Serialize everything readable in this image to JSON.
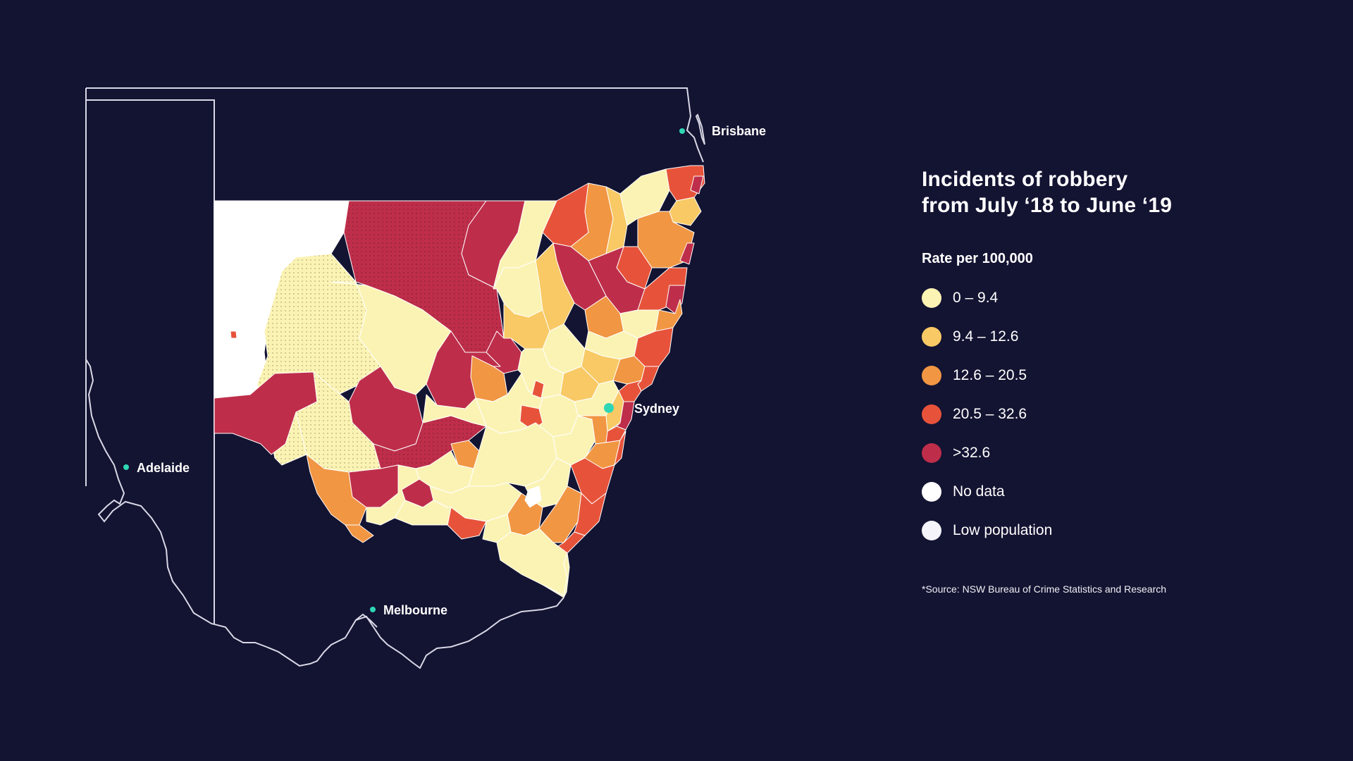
{
  "legend": {
    "title_line1": "Incidents of robbery",
    "title_line2": "from July ‘18 to June ‘19",
    "subtitle": "Rate per 100,000",
    "items": [
      {
        "label": "0 – 9.4",
        "color": "#fbf3b4"
      },
      {
        "label": "9.4 – 12.6",
        "color": "#f8c964"
      },
      {
        "label": "12.6 – 20.5",
        "color": "#f19643"
      },
      {
        "label": "20.5 – 32.6",
        "color": "#e7533a"
      },
      {
        "label": ">32.6",
        "color": "#be2e4a"
      },
      {
        "label": "No data",
        "color": "#ffffff"
      },
      {
        "label": "Low population",
        "color": "#f4f4fa"
      }
    ],
    "source": "*Source: NSW Bureau of Crime Statistics and Research"
  },
  "cities": {
    "brisbane": "Brisbane",
    "sydney": "Sydney",
    "adelaide": "Adelaide",
    "melbourne": "Melbourne"
  },
  "colors": {
    "background": "#131332",
    "border": "#d8d8e6",
    "city_marker": "#2fd6b4"
  }
}
